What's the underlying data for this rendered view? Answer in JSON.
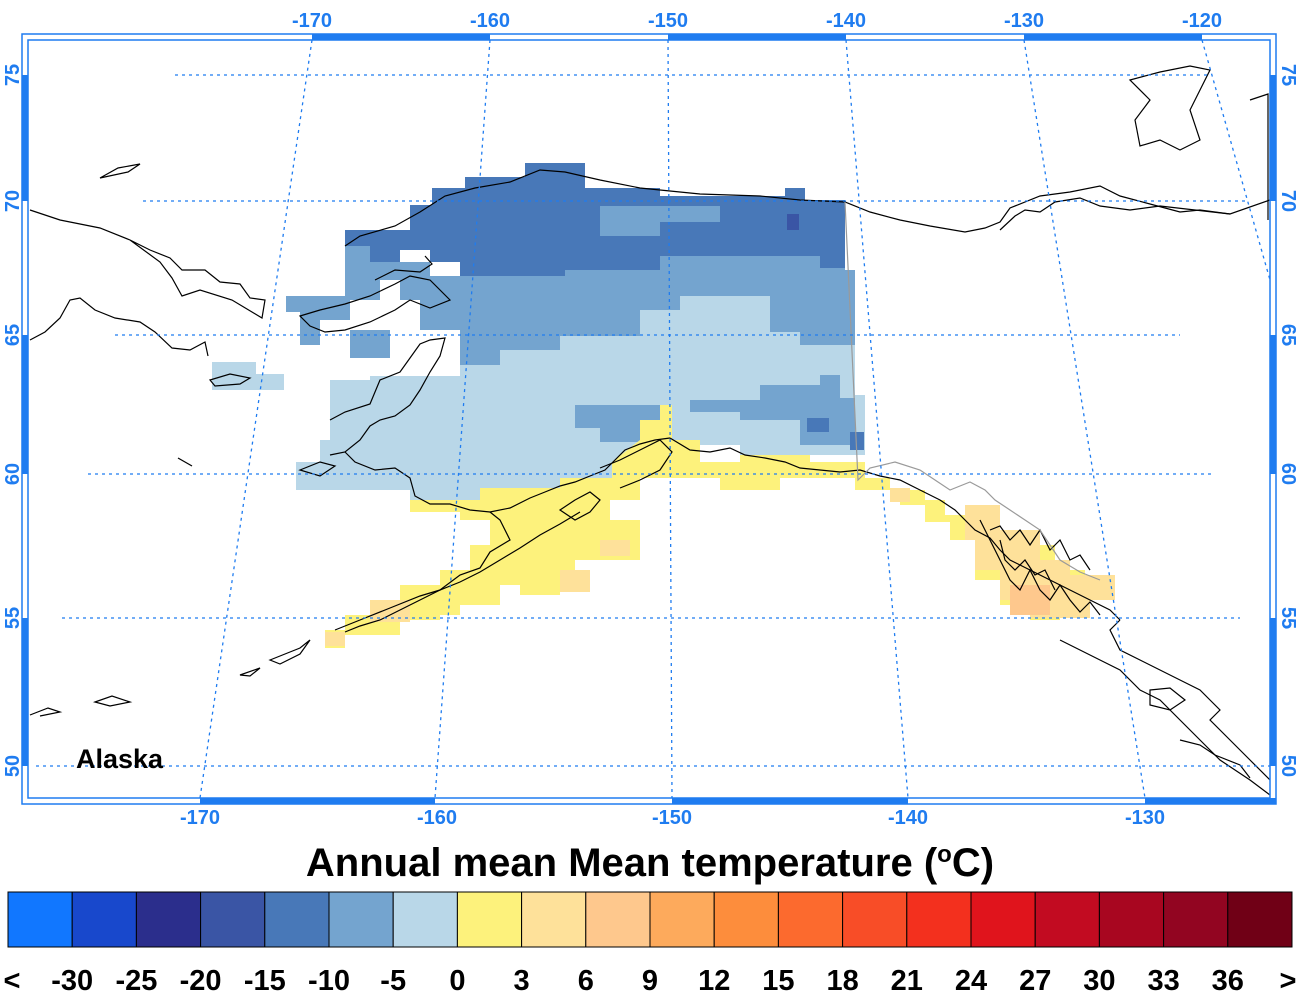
{
  "map": {
    "region_label": "Alaska",
    "title_main": "Annual mean Mean temperature (",
    "title_degree": "o",
    "title_unit": "C)",
    "frame_color": "#1f7cf0",
    "coastline_color": "#000000",
    "lon_labels_top": [
      "-170",
      "-160",
      "-150",
      "-140",
      "-130",
      "-120"
    ],
    "lon_labels_bottom": [
      "-170",
      "-160",
      "-150",
      "-140",
      "-130"
    ],
    "lat_labels": [
      "75",
      "70",
      "65",
      "60",
      "55",
      "50"
    ]
  },
  "colorbar": {
    "colors": [
      "#1177ff",
      "#1848cc",
      "#2b2e8c",
      "#3a55a5",
      "#4878b8",
      "#74a4cf",
      "#b9d7e8",
      "#fdf27c",
      "#fee19a",
      "#fec88d",
      "#fdaa5c",
      "#fd8d3c",
      "#fc6a2e",
      "#f84d27",
      "#f3301e",
      "#e0141c",
      "#c20b21",
      "#a80620",
      "#920521",
      "#700016"
    ],
    "labels": [
      "<",
      "-30",
      "-25",
      "-20",
      "-15",
      "-10",
      "-5",
      "0",
      "3",
      "6",
      "9",
      "12",
      "15",
      "18",
      "21",
      "24",
      "27",
      "30",
      "33",
      "36",
      ">"
    ]
  }
}
